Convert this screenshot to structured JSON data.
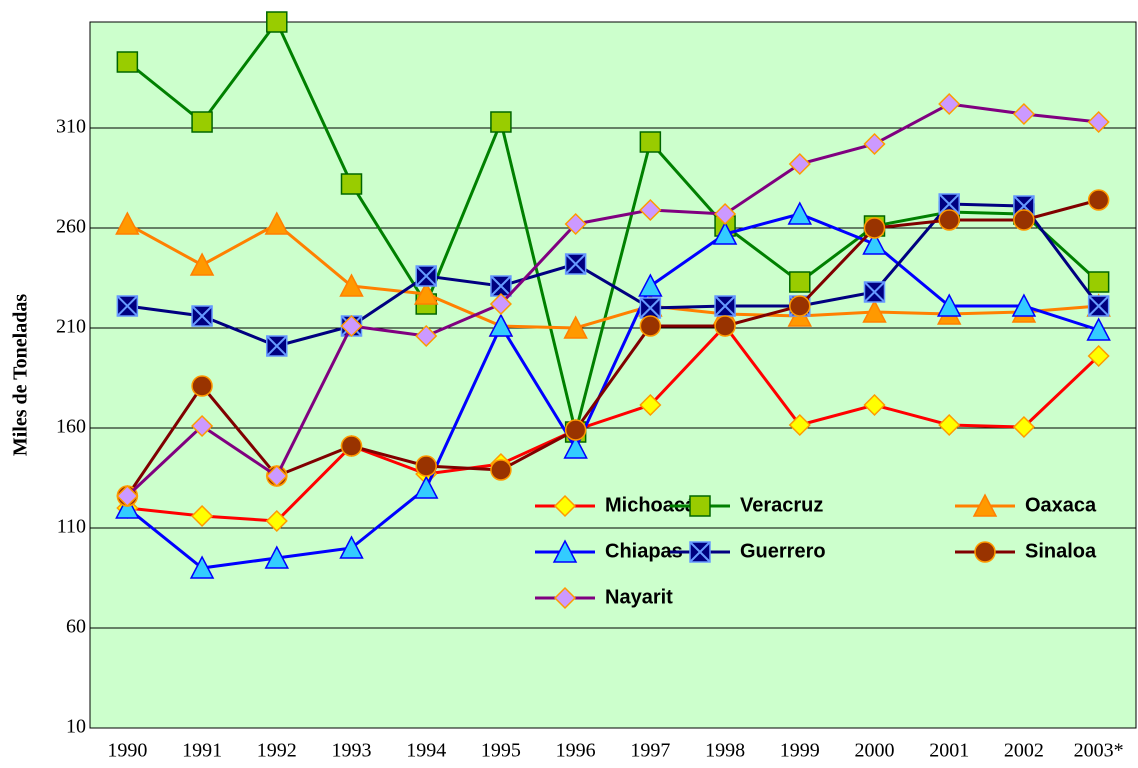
{
  "chart_data": {
    "type": "line",
    "y_label": "Miles de Toneladas",
    "categories": [
      "1990",
      "1991",
      "1992",
      "1993",
      "1994",
      "1995",
      "1996",
      "1997",
      "1998",
      "1999",
      "2000",
      "2001",
      "2002",
      "2003*"
    ],
    "ylim": [
      10,
      363
    ],
    "yticks": [
      10,
      60,
      110,
      160,
      210,
      260,
      310
    ],
    "grid": true,
    "background": "#ccffcc",
    "series": [
      {
        "name": "Michoacán",
        "color": "#ff0000",
        "marker": "diamond",
        "marker_color": "#ffff00",
        "values": [
          120,
          116,
          113.5,
          151,
          137,
          142,
          159,
          171.5,
          211,
          161.5,
          171.5,
          161.5,
          160.5,
          196
        ]
      },
      {
        "name": "Veracruz",
        "color": "#008000",
        "marker": "square",
        "marker_color": "#99cc00",
        "values": [
          343,
          313,
          363,
          282,
          222,
          313,
          158,
          303,
          261,
          233,
          261,
          268,
          267,
          233
        ]
      },
      {
        "name": "Oaxaca",
        "color": "#ff8000",
        "marker": "triangle",
        "marker_color": "#ff9900",
        "values": [
          262,
          241.5,
          262,
          231,
          227,
          211,
          210,
          221,
          217,
          216,
          218,
          217,
          218,
          221
        ]
      },
      {
        "name": "Chiapas",
        "color": "#0000ff",
        "marker": "triangle",
        "marker_color": "#33ccff",
        "values": [
          120,
          90,
          95,
          100,
          130,
          211,
          150,
          231,
          257,
          267,
          252,
          221,
          221,
          209
        ]
      },
      {
        "name": "Guerrero",
        "color": "#000080",
        "marker": "xsquare",
        "marker_color": "#000080",
        "values": [
          221,
          216,
          201,
          211,
          236,
          231,
          242,
          220,
          221,
          221,
          228,
          272,
          271,
          221
        ]
      },
      {
        "name": "Sinaloa",
        "color": "#800000",
        "marker": "circle",
        "marker_color": "#993300",
        "values": [
          126,
          181,
          136,
          151,
          141,
          139,
          159,
          211,
          211,
          221,
          260,
          264,
          264,
          274
        ]
      },
      {
        "name": "Nayarit",
        "color": "#800080",
        "marker": "diamond",
        "marker_color": "#cc99ff",
        "values": [
          126,
          161,
          136,
          211,
          206,
          222,
          262,
          269,
          267,
          292,
          302,
          322,
          317,
          313
        ]
      }
    ]
  }
}
